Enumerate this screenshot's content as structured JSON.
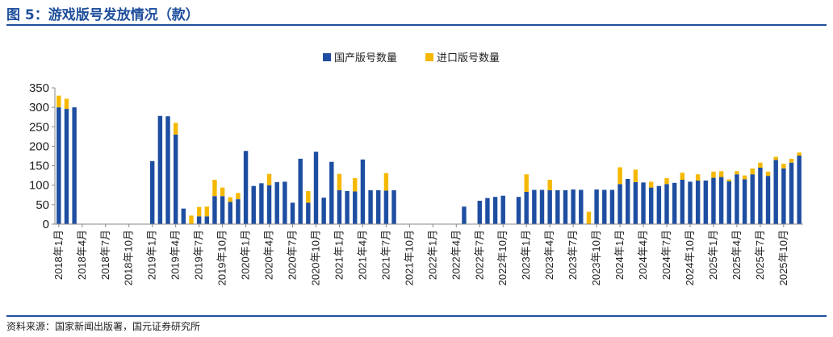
{
  "figure": {
    "title": "图 5：游戏版号发放情况（款）",
    "source": "资料来源：国家新闻出版署，国元证券研究所"
  },
  "colors": {
    "domestic": "#1e4ea1",
    "import": "#f5b800",
    "title": "#1f4f9c"
  },
  "chart_data": {
    "type": "bar",
    "stacked": true,
    "title": "",
    "xlabel": "",
    "ylabel": "",
    "ylim": [
      0,
      350
    ],
    "yticks": [
      0,
      50,
      100,
      150,
      200,
      250,
      300,
      350
    ],
    "grid": false,
    "legend_position": "top-center",
    "x_start": "2018-01",
    "x_end": "2025-12",
    "xtick_labels": [
      "2018年1月",
      "2018年4月",
      "2018年7月",
      "2018年10月",
      "2019年1月",
      "2019年4月",
      "2019年7月",
      "2019年10月",
      "2020年1月",
      "2020年4月",
      "2020年7月",
      "2020年10月",
      "2021年1月",
      "2021年4月",
      "2021年7月",
      "2021年10月",
      "2022年1月",
      "2022年4月",
      "2022年7月",
      "2022年10月",
      "2023年1月",
      "2023年4月",
      "2023年7月",
      "2023年10月",
      "2024年1月",
      "2024年4月",
      "2024年7月",
      "2024年10月",
      "2025年1月",
      "2025年4月",
      "2025年7月",
      "2025年10月"
    ],
    "series": [
      {
        "name": "国产版号数量",
        "values": [
          300,
          296,
          300,
          null,
          null,
          null,
          null,
          null,
          null,
          null,
          null,
          null,
          162,
          278,
          277,
          230,
          40,
          null,
          20,
          20,
          72,
          72,
          57,
          64,
          188,
          98,
          105,
          100,
          108,
          109,
          55,
          168,
          55,
          186,
          68,
          160,
          87,
          85,
          84,
          166,
          87,
          87,
          86,
          87,
          null,
          null,
          null,
          null,
          null,
          null,
          null,
          null,
          45,
          null,
          60,
          67,
          70,
          73,
          null,
          70,
          83,
          88,
          88,
          87,
          87,
          87,
          89,
          88,
          null,
          89,
          88,
          88,
          103,
          116,
          108,
          107,
          94,
          98,
          103,
          106,
          114,
          109,
          112,
          112,
          119,
          121,
          110,
          128,
          115,
          128,
          145,
          124,
          165,
          143,
          158,
          176
        ],
        "color": "#1e4ea1"
      },
      {
        "name": "进口版号数量",
        "values": [
          30,
          26,
          0,
          null,
          null,
          null,
          null,
          null,
          null,
          null,
          null,
          null,
          0,
          0,
          0,
          30,
          0,
          22,
          24,
          25,
          42,
          22,
          12,
          16,
          0,
          0,
          0,
          29,
          0,
          0,
          0,
          0,
          30,
          0,
          0,
          0,
          42,
          0,
          34,
          0,
          0,
          0,
          45,
          0,
          null,
          null,
          null,
          null,
          null,
          null,
          null,
          null,
          0,
          null,
          0,
          0,
          0,
          0,
          null,
          0,
          45,
          0,
          0,
          27,
          0,
          0,
          0,
          0,
          32,
          0,
          0,
          0,
          43,
          0,
          32,
          0,
          15,
          0,
          15,
          0,
          18,
          0,
          16,
          0,
          16,
          15,
          5,
          8,
          10,
          15,
          13,
          11,
          8,
          12,
          10,
          8
        ],
        "color": "#f5b800"
      }
    ]
  }
}
